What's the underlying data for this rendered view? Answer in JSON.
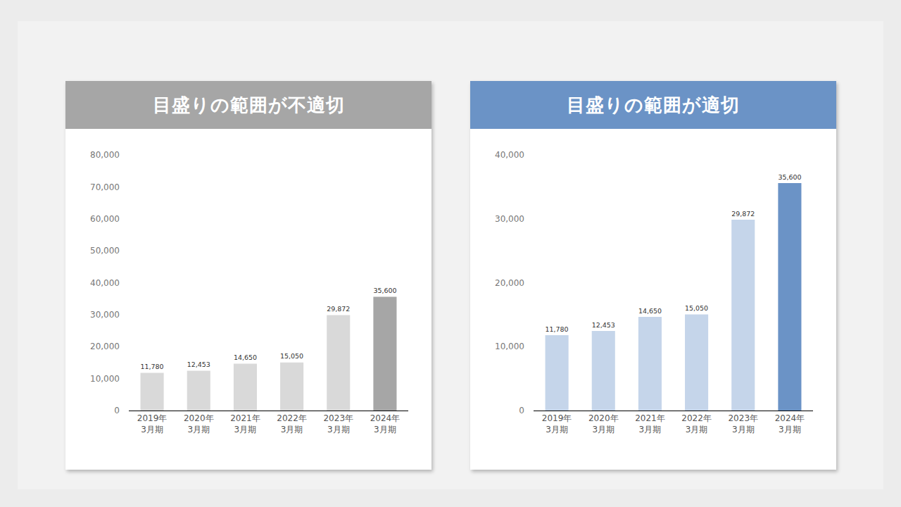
{
  "chart_data": [
    {
      "type": "bar",
      "title": "目盛りの範囲が不適切",
      "categories": [
        "2019年\n3月期",
        "2020年\n3月期",
        "2021年\n3月期",
        "2022年\n3月期",
        "2023年\n3月期",
        "2024年\n3月期"
      ],
      "values": [
        11780,
        12453,
        14650,
        15050,
        29872,
        35600
      ],
      "value_labels": [
        "11,780",
        "12,453",
        "14,650",
        "15,050",
        "29,872",
        "35,600"
      ],
      "colors": [
        "#d9d9d9",
        "#d9d9d9",
        "#d9d9d9",
        "#d9d9d9",
        "#d9d9d9",
        "#a6a6a6"
      ],
      "ylim": [
        0,
        80000
      ],
      "yticks": [
        0,
        {
          "value": 10000,
          "label": "10,000"
        },
        {
          "value": 20000,
          "label": "20,000"
        },
        {
          "value": 30000,
          "label": "30,000"
        },
        {
          "value": 40000,
          "label": "40,000"
        },
        {
          "value": 50000,
          "label": "50,000"
        },
        {
          "value": 60000,
          "label": "60,000"
        },
        {
          "value": 70000,
          "label": "70,000"
        },
        {
          "value": 80000,
          "label": "80,000"
        }
      ],
      "grid": false,
      "data_labels": true
    },
    {
      "type": "bar",
      "title": "目盛りの範囲が適切",
      "categories": [
        "2019年\n3月期",
        "2020年\n3月期",
        "2021年\n3月期",
        "2022年\n3月期",
        "2023年\n3月期",
        "2024年\n3月期"
      ],
      "values": [
        11780,
        12453,
        14650,
        15050,
        29872,
        35600
      ],
      "value_labels": [
        "11,780",
        "12,453",
        "14,650",
        "15,050",
        "29,872",
        "35,600"
      ],
      "colors": [
        "#c5d5ea",
        "#c5d5ea",
        "#c5d5ea",
        "#c5d5ea",
        "#c5d5ea",
        "#6b93c6"
      ],
      "ylim": [
        0,
        40000
      ],
      "yticks": [
        0,
        {
          "value": 10000,
          "label": "10,000"
        },
        {
          "value": 20000,
          "label": "20,000"
        },
        {
          "value": 30000,
          "label": "30,000"
        },
        {
          "value": 40000,
          "label": "40,000"
        }
      ],
      "grid": false,
      "data_labels": true
    }
  ]
}
